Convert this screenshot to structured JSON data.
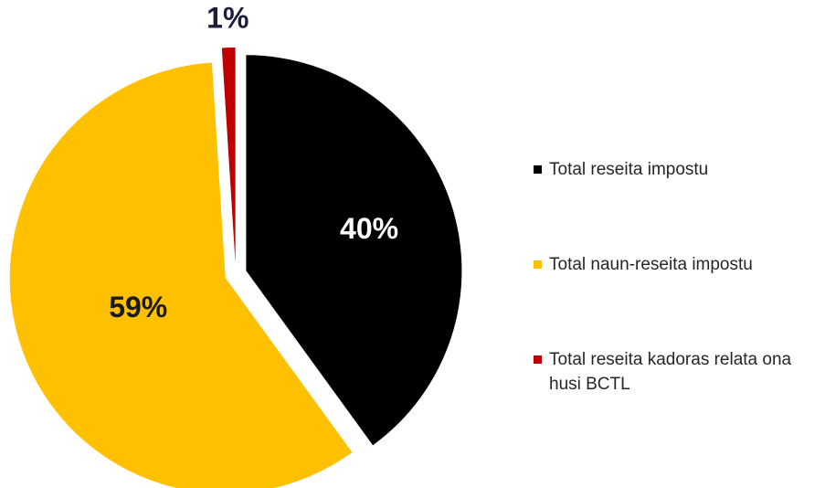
{
  "chart_data": {
    "type": "pie",
    "categories": [
      "Total reseita impostu",
      "Total naun-reseita impostu",
      "Total reseita kadoras relata ona husi BCTL"
    ],
    "values": [
      40,
      59,
      1
    ],
    "value_labels": [
      "40%",
      "59%",
      "1%"
    ],
    "colors": [
      "#000000",
      "#ffc000",
      "#c00000"
    ],
    "label_colors": [
      "#ffffff",
      "#1a1a1a",
      "#1c1c3c"
    ],
    "legend": "right"
  }
}
